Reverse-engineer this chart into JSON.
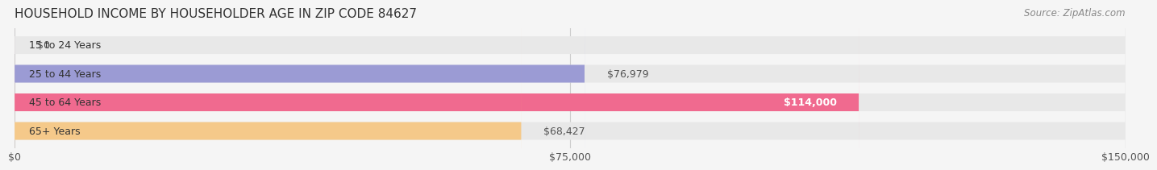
{
  "title": "HOUSEHOLD INCOME BY HOUSEHOLDER AGE IN ZIP CODE 84627",
  "source": "Source: ZipAtlas.com",
  "categories": [
    "15 to 24 Years",
    "25 to 44 Years",
    "45 to 64 Years",
    "65+ Years"
  ],
  "values": [
    0,
    76979,
    114000,
    68427
  ],
  "bar_colors": [
    "#7ecece",
    "#9b9bd4",
    "#f06a8f",
    "#f5c98a"
  ],
  "bar_label_colors": [
    "#555555",
    "#555555",
    "#ffffff",
    "#555555"
  ],
  "xlim": [
    0,
    150000
  ],
  "xticks": [
    0,
    75000,
    150000
  ],
  "xtick_labels": [
    "$0",
    "$75,000",
    "$150,000"
  ],
  "background_color": "#f5f5f5",
  "bar_bg_color": "#e8e8e8",
  "title_fontsize": 11,
  "source_fontsize": 8.5,
  "label_fontsize": 9,
  "tick_fontsize": 9,
  "bar_height": 0.62,
  "figsize": [
    14.06,
    2.33
  ]
}
